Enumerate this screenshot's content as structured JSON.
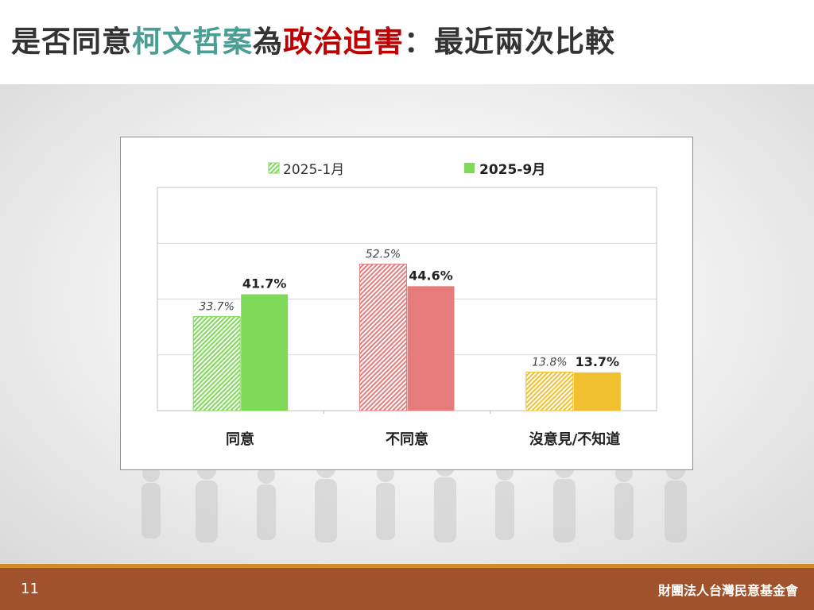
{
  "title": {
    "parts": [
      {
        "text": "是否同意",
        "color": "#333333"
      },
      {
        "text": "柯文哲案",
        "color": "#4a9e94"
      },
      {
        "text": "為",
        "color": "#333333"
      },
      {
        "text": "政治迫害",
        "color": "#c00000"
      },
      {
        "text": "：最近兩次比較",
        "color": "#333333"
      }
    ]
  },
  "footer": {
    "page_number": "11",
    "organization": "財團法人台灣民意基金會"
  },
  "chart_data": {
    "type": "bar",
    "categories": [
      "同意",
      "不同意",
      "沒意見/不知道"
    ],
    "series": [
      {
        "name": "2025-1月",
        "values": [
          33.7,
          52.5,
          13.8
        ],
        "labels": [
          "33.7%",
          "52.5%",
          "13.8%"
        ],
        "pattern": "hatched"
      },
      {
        "name": "2025-9月",
        "values": [
          41.7,
          44.6,
          13.7
        ],
        "labels": [
          "41.7%",
          "44.6%",
          "13.7%"
        ],
        "pattern": "solid"
      }
    ],
    "category_colors": [
      "#7ed957",
      "#e57b7b",
      "#f0c030"
    ],
    "legend_position": "top",
    "ylim": [
      0,
      80
    ],
    "grid": true
  }
}
